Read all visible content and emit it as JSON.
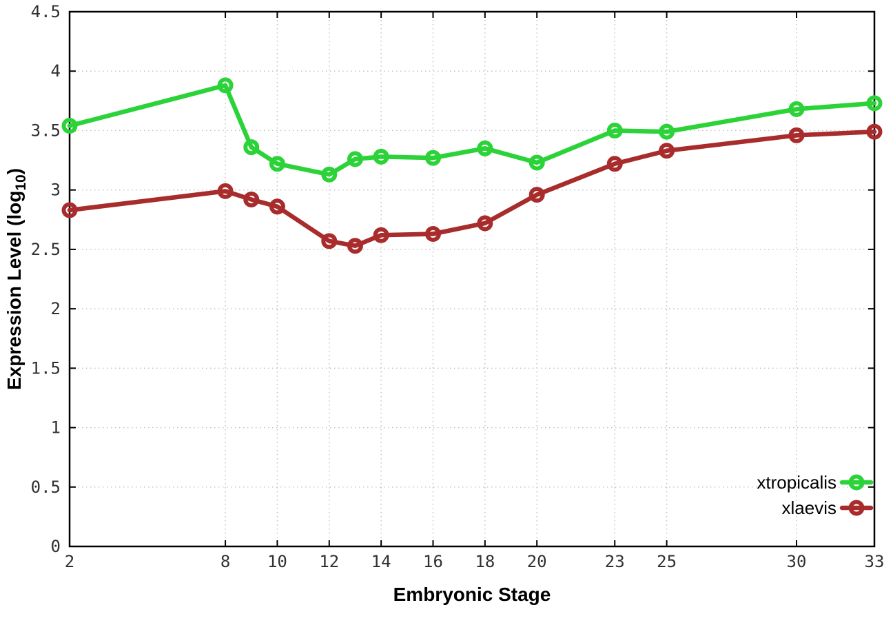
{
  "figure": {
    "background": "#ffffff"
  },
  "chart_data": {
    "type": "line",
    "title": "",
    "xlabel": "Embryonic Stage",
    "ylabel": "Expression Level (log10)",
    "ylabel_parts": {
      "main": "Expression Level (log",
      "sub": "10",
      "end": ")"
    },
    "x_range": [
      2,
      33
    ],
    "y_range": [
      0,
      4.5
    ],
    "x_ticks": [
      2,
      8,
      10,
      12,
      14,
      16,
      18,
      20,
      23,
      25,
      30,
      33
    ],
    "x_tick_labels": [
      "2",
      "8",
      "10",
      "12",
      "14",
      "16",
      "18",
      "20",
      "23",
      "25",
      "30",
      "33"
    ],
    "y_ticks": [
      0,
      0.5,
      1,
      1.5,
      2,
      2.5,
      3,
      3.5,
      4,
      4.5
    ],
    "y_tick_labels": [
      "0",
      "0.5",
      "1",
      "1.5",
      "2",
      "2.5",
      "3",
      "3.5",
      "4",
      "4.5"
    ],
    "grid": true,
    "legend": {
      "position": "inside-bottom-right"
    },
    "x": [
      2,
      8,
      9,
      10,
      12,
      13,
      14,
      16,
      18,
      20,
      23,
      25,
      30,
      33
    ],
    "series": [
      {
        "name": "xtropicalis",
        "color": "#2bd339",
        "values": [
          3.54,
          3.88,
          3.36,
          3.22,
          3.13,
          3.26,
          3.28,
          3.27,
          3.35,
          3.23,
          3.5,
          3.49,
          3.68,
          3.73
        ]
      },
      {
        "name": "xlaevis",
        "color": "#a82c2c",
        "values": [
          2.83,
          2.99,
          2.92,
          2.86,
          2.57,
          2.53,
          2.62,
          2.63,
          2.72,
          2.96,
          3.22,
          3.33,
          3.46,
          3.49
        ]
      }
    ],
    "colors": {
      "grid": "#bfbfbf",
      "axis": "#000000",
      "tick_label": "#303030"
    }
  }
}
